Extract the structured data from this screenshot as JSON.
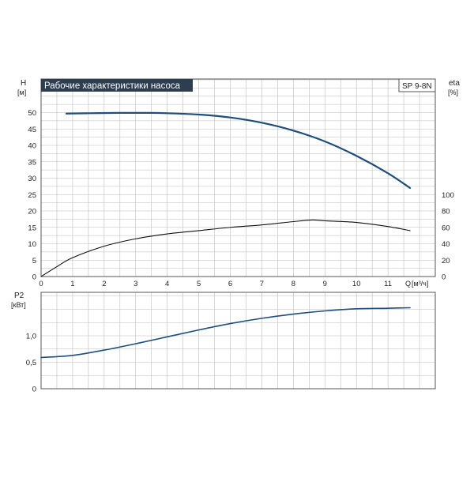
{
  "title": "Рабочие характеристики насоса",
  "model": "SP 9-8N",
  "colors": {
    "grid": "#bcbcbc",
    "frame": "#555555",
    "head": "#1d4f7d",
    "eta": "#111111",
    "power": "#1d4f7d",
    "title_bg": "#2c3e50",
    "title_fg": "#ffffff"
  },
  "chart_data": [
    {
      "type": "line",
      "panel": "upper",
      "x_axis": {
        "label": "Q",
        "unit": "[м³/ч]",
        "range": [
          0,
          12.5
        ],
        "ticks": [
          "0",
          "1",
          "2",
          "3",
          "4",
          "5",
          "6",
          "7",
          "8",
          "9",
          "10",
          "11"
        ],
        "grid_step": 0.5
      },
      "y_axis_left": {
        "label": "H",
        "unit": "[м]",
        "range": [
          0,
          60
        ],
        "ticks": [
          "0",
          "5",
          "10",
          "15",
          "20",
          "25",
          "30",
          "35",
          "40",
          "45",
          "50"
        ],
        "grid_step": 2.5
      },
      "y_axis_right": {
        "label": "eta",
        "unit": "[%]",
        "range": [
          0,
          100
        ],
        "ticks": [
          "0",
          "20",
          "40",
          "60",
          "80",
          "100"
        ]
      },
      "grid": true,
      "series": [
        {
          "axis": "left",
          "x": [
            0.8,
            1.5,
            2.5,
            3.5,
            4.0,
            5.0,
            6.0,
            7.0,
            8.0,
            9.0,
            10.0,
            11.0,
            11.7
          ],
          "y": [
            49.7,
            49.8,
            49.9,
            49.9,
            49.8,
            49.4,
            48.5,
            46.9,
            44.5,
            41.2,
            36.8,
            31.5,
            27.0
          ]
        },
        {
          "axis": "right",
          "x": [
            0,
            0.5,
            1,
            2,
            3,
            4,
            5,
            6,
            7,
            8,
            8.6,
            9,
            10,
            11,
            11.7
          ],
          "y": [
            0,
            12,
            23,
            37,
            46,
            52,
            56,
            60,
            63,
            67,
            69,
            68,
            66,
            61,
            56
          ]
        }
      ]
    },
    {
      "type": "line",
      "panel": "lower",
      "x_axis": {
        "range": [
          0,
          12.5
        ],
        "grid_step": 0.5
      },
      "y_axis_left": {
        "label": "P2",
        "unit": "[кВт]",
        "range": [
          0,
          1.8
        ],
        "ticks": [
          "0",
          "0,5",
          "1,0"
        ],
        "grid_step": 0.25
      },
      "grid": true,
      "series": [
        {
          "axis": "left",
          "x": [
            0,
            1,
            2,
            3,
            4,
            5,
            6,
            7,
            8,
            9,
            10,
            11,
            11.7
          ],
          "y": [
            0.59,
            0.63,
            0.73,
            0.85,
            0.98,
            1.11,
            1.23,
            1.33,
            1.41,
            1.47,
            1.51,
            1.52,
            1.53
          ]
        }
      ]
    }
  ]
}
